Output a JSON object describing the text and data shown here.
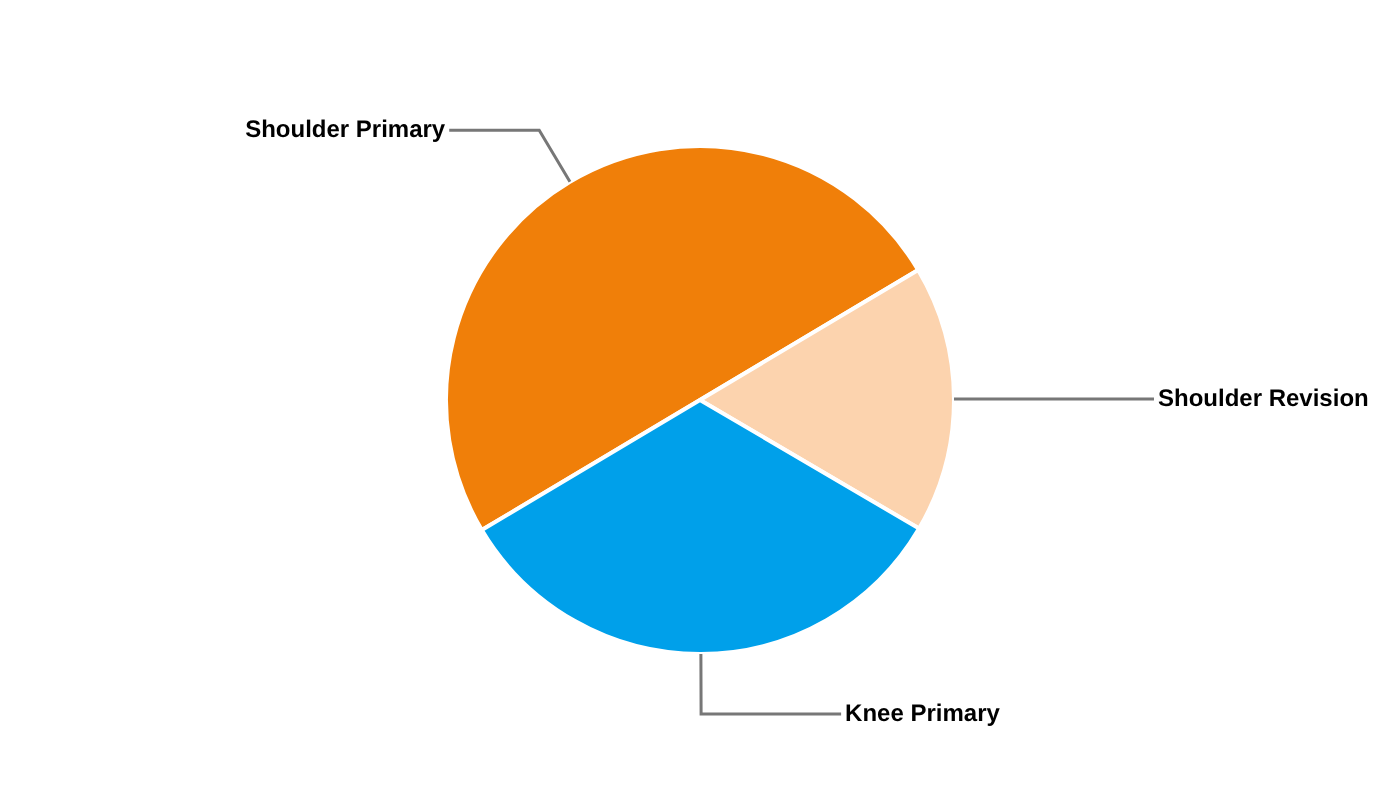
{
  "chart_data": {
    "type": "pie",
    "categories": [
      "Shoulder Primary",
      "Shoulder Revision",
      "Knee Primary"
    ],
    "values": [
      50,
      17,
      33
    ],
    "colors": [
      "#f07f09",
      "#fcd3ae",
      "#00a0ea"
    ]
  }
}
